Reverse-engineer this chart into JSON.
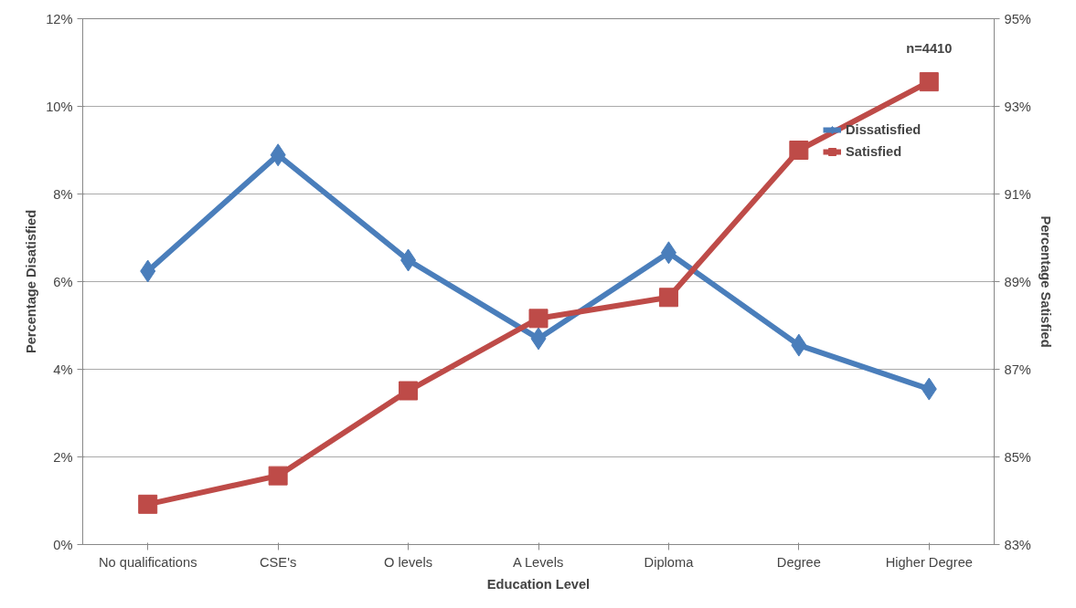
{
  "chart_data": {
    "type": "line",
    "xlabel": "Education Level",
    "ylabel": "Percentage Disatisfied",
    "y2label": "Percentage Satisfied",
    "categories": [
      "No qualifications",
      "CSE's",
      "O levels",
      "A Levels",
      "Diploma",
      "Degree",
      "Higher Degree"
    ],
    "series": [
      {
        "name": "Dissatisfied",
        "color": "#4a7ebb",
        "marker": "diamond",
        "values": [
          6.24,
          8.89,
          6.49,
          4.7,
          6.66,
          4.55,
          3.55
        ]
      },
      {
        "name": "Satisfied",
        "color": "#be4b48",
        "marker": "square",
        "axis": "y2",
        "values": [
          83.92,
          84.57,
          86.51,
          88.16,
          88.64,
          92.0,
          93.56
        ]
      }
    ],
    "ylim": [
      0,
      12
    ],
    "yticks": [
      {
        "value": 0,
        "label": "0%"
      },
      {
        "value": 2,
        "label": "2%"
      },
      {
        "value": 4,
        "label": "4%"
      },
      {
        "value": 6,
        "label": "6%"
      },
      {
        "value": 8,
        "label": "8%"
      },
      {
        "value": 10,
        "label": "10%"
      },
      {
        "value": 12,
        "label": "12%"
      }
    ],
    "y2lim": [
      83,
      95
    ],
    "y2ticks": [
      {
        "value": 83,
        "label": "83%"
      },
      {
        "value": 85,
        "label": "85%"
      },
      {
        "value": 87,
        "label": "87%"
      },
      {
        "value": 89,
        "label": "89%"
      },
      {
        "value": 91,
        "label": "91%"
      },
      {
        "value": 93,
        "label": "93%"
      },
      {
        "value": 95,
        "label": "95%"
      }
    ],
    "annotations": [
      "n=4410"
    ],
    "grid": "y",
    "legend": "top right",
    "line_style": "solid"
  }
}
